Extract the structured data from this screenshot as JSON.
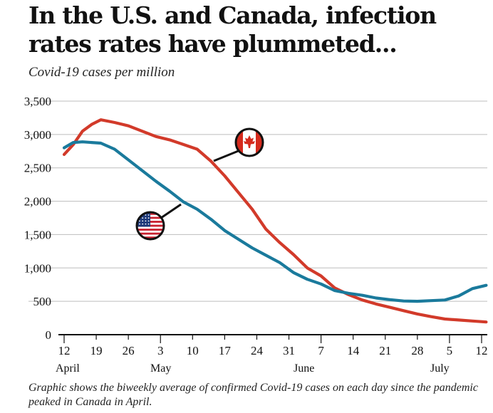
{
  "title": "In the U.S. and Canada, infection rates rates have plummeted...",
  "subtitle": "Covid-19 cases per million",
  "caption": "Graphic shows the biweekly average of confirmed Covid-19 cases on each day since the pandemic peaked in Canada in April.",
  "chart_data": {
    "type": "line",
    "ylim": [
      0,
      3500
    ],
    "y_ticks": [
      0,
      500,
      1000,
      1500,
      2000,
      2500,
      3000,
      3500
    ],
    "y_tick_labels": [
      "0",
      "500",
      "1,000",
      "1,500",
      "2,000",
      "2,500",
      "3,000",
      "3,500"
    ],
    "x_tick_labels": [
      "12",
      "19",
      "26",
      "3",
      "10",
      "17",
      "24",
      "31",
      "7",
      "14",
      "21",
      "28",
      "5",
      "12"
    ],
    "month_labels": [
      "April",
      "May",
      "June",
      "July"
    ],
    "grid": true,
    "legend": "none",
    "series": [
      {
        "color": "#d23a2a",
        "marker": "canada-flag-icon",
        "x": [
          "2020-04-12",
          "2020-04-14",
          "2020-04-16",
          "2020-04-18",
          "2020-04-20",
          "2020-04-23",
          "2020-04-26",
          "2020-04-29",
          "2020-05-02",
          "2020-05-05",
          "2020-05-08",
          "2020-05-11",
          "2020-05-14",
          "2020-05-17",
          "2020-05-20",
          "2020-05-23",
          "2020-05-26",
          "2020-05-29",
          "2020-06-01",
          "2020-06-04",
          "2020-06-07",
          "2020-06-10",
          "2020-06-13",
          "2020-06-16",
          "2020-06-19",
          "2020-06-22",
          "2020-06-25",
          "2020-06-28",
          "2020-07-01",
          "2020-07-04",
          "2020-07-07",
          "2020-07-10",
          "2020-07-13"
        ],
        "y": [
          2700,
          2850,
          3050,
          3150,
          3220,
          3180,
          3130,
          3050,
          2970,
          2920,
          2850,
          2780,
          2600,
          2380,
          2130,
          1880,
          1580,
          1380,
          1200,
          1000,
          880,
          700,
          600,
          520,
          460,
          410,
          360,
          310,
          270,
          235,
          220,
          205,
          190
        ]
      },
      {
        "color": "#1a7a9c",
        "marker": "usa-flag-icon",
        "x": [
          "2020-04-12",
          "2020-04-14",
          "2020-04-16",
          "2020-04-18",
          "2020-04-20",
          "2020-04-23",
          "2020-04-26",
          "2020-04-29",
          "2020-05-02",
          "2020-05-05",
          "2020-05-08",
          "2020-05-11",
          "2020-05-14",
          "2020-05-17",
          "2020-05-20",
          "2020-05-23",
          "2020-05-26",
          "2020-05-29",
          "2020-06-01",
          "2020-06-04",
          "2020-06-07",
          "2020-06-10",
          "2020-06-13",
          "2020-06-16",
          "2020-06-19",
          "2020-06-22",
          "2020-06-25",
          "2020-06-28",
          "2020-07-01",
          "2020-07-04",
          "2020-07-07",
          "2020-07-10",
          "2020-07-13"
        ],
        "y": [
          2800,
          2880,
          2890,
          2880,
          2870,
          2780,
          2620,
          2460,
          2300,
          2150,
          1990,
          1880,
          1730,
          1560,
          1430,
          1300,
          1190,
          1080,
          930,
          830,
          760,
          660,
          620,
          590,
          550,
          525,
          505,
          500,
          510,
          520,
          580,
          690,
          740
        ]
      }
    ]
  }
}
